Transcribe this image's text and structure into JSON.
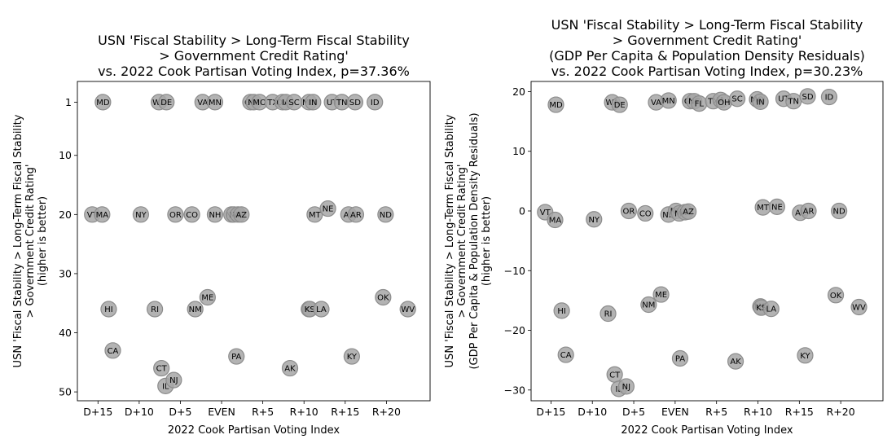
{
  "chart_data": [
    {
      "type": "scatter",
      "title_lines": [
        "USN 'Fiscal Stability > Long-Term Fiscal Stability",
        "> Government Credit Rating'",
        "vs. 2022 Cook Partisan Voting Index, p=37.36%"
      ],
      "xlabel": "2022 Cook Partisan Voting Index",
      "ylabel_lines": [
        "USN 'Fiscal Stability > Long-Term Fiscal Stability",
        "> Government Credit Rating'",
        "(higher is better)"
      ],
      "y_inverted": true,
      "xlim": [
        -17.5,
        25.3
      ],
      "ylim": [
        51.5,
        -2.5
      ],
      "xticks": [
        {
          "v": -15,
          "label": "D+15"
        },
        {
          "v": -10,
          "label": "D+10"
        },
        {
          "v": -5,
          "label": "D+5"
        },
        {
          "v": 0,
          "label": "EVEN"
        },
        {
          "v": 5,
          "label": "R+5"
        },
        {
          "v": 10,
          "label": "R+10"
        },
        {
          "v": 15,
          "label": "R+15"
        },
        {
          "v": 20,
          "label": "R+20"
        }
      ],
      "yticks": [
        {
          "v": 1,
          "label": "1"
        },
        {
          "v": 10,
          "label": "10"
        },
        {
          "v": 20,
          "label": "20"
        },
        {
          "v": 30,
          "label": "30"
        },
        {
          "v": 40,
          "label": "40"
        },
        {
          "v": 50,
          "label": "50"
        }
      ],
      "points": [
        {
          "label": "MD",
          "x": -14.4,
          "y": 1
        },
        {
          "label": "WA",
          "x": -7.6,
          "y": 1
        },
        {
          "label": "DE",
          "x": -6.7,
          "y": 1
        },
        {
          "label": "VA",
          "x": -2.3,
          "y": 1
        },
        {
          "label": "MN",
          "x": -0.8,
          "y": 1
        },
        {
          "label": "GA",
          "x": 3.5,
          "y": 1
        },
        {
          "label": "NC",
          "x": 3.9,
          "y": 1
        },
        {
          "label": "MO",
          "x": 4.6,
          "y": 1
        },
        {
          "label": "TX",
          "x": 6.2,
          "y": 1
        },
        {
          "label": "OH",
          "x": 7.4,
          "y": 1
        },
        {
          "label": "IA",
          "x": 7.8,
          "y": 1
        },
        {
          "label": "SC",
          "x": 8.8,
          "y": 1
        },
        {
          "label": "MO",
          "x": 10.6,
          "y": 1
        },
        {
          "label": "IN",
          "x": 11.1,
          "y": 1
        },
        {
          "label": "UT",
          "x": 13.4,
          "y": 1
        },
        {
          "label": "TN",
          "x": 14.6,
          "y": 1
        },
        {
          "label": "SD",
          "x": 16.2,
          "y": 1
        },
        {
          "label": "ID",
          "x": 18.6,
          "y": 1
        },
        {
          "label": "VT",
          "x": -15.7,
          "y": 20
        },
        {
          "label": "MA",
          "x": -14.5,
          "y": 20
        },
        {
          "label": "NY",
          "x": -9.8,
          "y": 20
        },
        {
          "label": "OR",
          "x": -5.6,
          "y": 20
        },
        {
          "label": "CO",
          "x": -3.6,
          "y": 20
        },
        {
          "label": "NH",
          "x": -0.8,
          "y": 20
        },
        {
          "label": "NV",
          "x": 1.2,
          "y": 20
        },
        {
          "label": "MI",
          "x": 1.5,
          "y": 20
        },
        {
          "label": "WI",
          "x": 2.0,
          "y": 20
        },
        {
          "label": "AZ",
          "x": 2.4,
          "y": 20
        },
        {
          "label": "MT",
          "x": 11.3,
          "y": 20
        },
        {
          "label": "NE",
          "x": 12.9,
          "y": 19
        },
        {
          "label": "AL",
          "x": 15.4,
          "y": 20
        },
        {
          "label": "AR",
          "x": 16.3,
          "y": 20
        },
        {
          "label": "ND",
          "x": 19.9,
          "y": 20
        },
        {
          "label": "HI",
          "x": -13.7,
          "y": 36
        },
        {
          "label": "RI",
          "x": -8.1,
          "y": 36
        },
        {
          "label": "NM",
          "x": -3.2,
          "y": 36
        },
        {
          "label": "ME",
          "x": -1.7,
          "y": 34
        },
        {
          "label": "MS",
          "x": 10.6,
          "y": 36
        },
        {
          "label": "KS",
          "x": 10.7,
          "y": 36
        },
        {
          "label": "LA",
          "x": 12.1,
          "y": 36
        },
        {
          "label": "OK",
          "x": 19.6,
          "y": 34
        },
        {
          "label": "WV",
          "x": 22.6,
          "y": 36
        },
        {
          "label": "CA",
          "x": -13.2,
          "y": 43
        },
        {
          "label": "CT",
          "x": -7.3,
          "y": 46
        },
        {
          "label": "IL",
          "x": -6.8,
          "y": 49
        },
        {
          "label": "NJ",
          "x": -5.8,
          "y": 48
        },
        {
          "label": "PA",
          "x": 1.8,
          "y": 44
        },
        {
          "label": "AK",
          "x": 8.3,
          "y": 46
        },
        {
          "label": "KY",
          "x": 15.8,
          "y": 44
        }
      ]
    },
    {
      "type": "scatter",
      "title_lines": [
        "USN 'Fiscal Stability > Long-Term Fiscal Stability",
        "> Government Credit Rating'",
        "(GDP Per Capita & Population Density Residuals)",
        "vs. 2022 Cook Partisan Voting Index, p=30.23%"
      ],
      "xlabel": "2022 Cook Partisan Voting Index",
      "ylabel_lines": [
        "USN 'Fiscal Stability > Long-Term Fiscal Stability",
        "> Government Credit Rating'",
        "(GDP Per Capita & Population Density Residuals)",
        "(higher is better)"
      ],
      "y_inverted": false,
      "xlim": [
        -17.4,
        25.1
      ],
      "ylim": [
        -31.8,
        21.7
      ],
      "xticks": [
        {
          "v": -15,
          "label": "D+15"
        },
        {
          "v": -10,
          "label": "D+10"
        },
        {
          "v": -5,
          "label": "D+5"
        },
        {
          "v": 0,
          "label": "EVEN"
        },
        {
          "v": 5,
          "label": "R+5"
        },
        {
          "v": 10,
          "label": "R+10"
        },
        {
          "v": 15,
          "label": "R+15"
        },
        {
          "v": 20,
          "label": "R+20"
        }
      ],
      "yticks": [
        {
          "v": 20,
          "label": "20"
        },
        {
          "v": 10,
          "label": "10"
        },
        {
          "v": 0,
          "label": "0"
        },
        {
          "v": -10,
          "label": "−10"
        },
        {
          "v": -20,
          "label": "−20"
        },
        {
          "v": -30,
          "label": "−30"
        }
      ],
      "points": [
        {
          "label": "MD",
          "x": -14.4,
          "y": 17.8
        },
        {
          "label": "WA",
          "x": -7.6,
          "y": 18.2
        },
        {
          "label": "DE",
          "x": -6.7,
          "y": 17.8
        },
        {
          "label": "VA",
          "x": -2.3,
          "y": 18.2
        },
        {
          "label": "MN",
          "x": -0.8,
          "y": 18.5
        },
        {
          "label": "GA",
          "x": 1.8,
          "y": 18.4
        },
        {
          "label": "NC",
          "x": 2.3,
          "y": 18.4
        },
        {
          "label": "FL",
          "x": 2.9,
          "y": 18.0
        },
        {
          "label": "TX",
          "x": 4.6,
          "y": 18.4
        },
        {
          "label": "IA",
          "x": 5.5,
          "y": 18.6
        },
        {
          "label": "OH",
          "x": 5.9,
          "y": 18.2
        },
        {
          "label": "SC",
          "x": 7.5,
          "y": 18.8
        },
        {
          "label": "MO",
          "x": 9.9,
          "y": 18.7
        },
        {
          "label": "IN",
          "x": 10.3,
          "y": 18.3
        },
        {
          "label": "UT",
          "x": 13.1,
          "y": 18.8
        },
        {
          "label": "TN",
          "x": 14.3,
          "y": 18.4
        },
        {
          "label": "SD",
          "x": 16.0,
          "y": 19.2
        },
        {
          "label": "ID",
          "x": 18.6,
          "y": 19.1
        },
        {
          "label": "VT",
          "x": -15.7,
          "y": -0.2
        },
        {
          "label": "MA",
          "x": -14.5,
          "y": -1.5
        },
        {
          "label": "NY",
          "x": -9.8,
          "y": -1.4
        },
        {
          "label": "OR",
          "x": -5.6,
          "y": 0.0
        },
        {
          "label": "CO",
          "x": -3.6,
          "y": -0.4
        },
        {
          "label": "NH",
          "x": -0.8,
          "y": -0.6
        },
        {
          "label": "NV",
          "x": 0.1,
          "y": 0.0
        },
        {
          "label": "MI",
          "x": 0.5,
          "y": -0.4
        },
        {
          "label": "WI",
          "x": 1.2,
          "y": -0.2
        },
        {
          "label": "AZ",
          "x": 1.6,
          "y": -0.1
        },
        {
          "label": "MT",
          "x": 10.6,
          "y": 0.6
        },
        {
          "label": "NE",
          "x": 12.3,
          "y": 0.7
        },
        {
          "label": "AL",
          "x": 15.1,
          "y": -0.3
        },
        {
          "label": "AR",
          "x": 16.1,
          "y": 0.0
        },
        {
          "label": "ND",
          "x": 19.8,
          "y": 0.0
        },
        {
          "label": "HI",
          "x": -13.7,
          "y": -16.7
        },
        {
          "label": "RI",
          "x": -8.1,
          "y": -17.2
        },
        {
          "label": "NM",
          "x": -3.2,
          "y": -15.7
        },
        {
          "label": "ME",
          "x": -1.7,
          "y": -14.0
        },
        {
          "label": "MS",
          "x": 10.3,
          "y": -16.0
        },
        {
          "label": "KS",
          "x": 10.4,
          "y": -16.2
        },
        {
          "label": "LA",
          "x": 11.6,
          "y": -16.4
        },
        {
          "label": "OK",
          "x": 19.4,
          "y": -14.1
        },
        {
          "label": "WV",
          "x": 22.2,
          "y": -16.1
        },
        {
          "label": "CA",
          "x": -13.2,
          "y": -24.1
        },
        {
          "label": "CT",
          "x": -7.3,
          "y": -27.4
        },
        {
          "label": "IL",
          "x": -6.8,
          "y": -29.8
        },
        {
          "label": "NJ",
          "x": -5.9,
          "y": -29.4
        },
        {
          "label": "PA",
          "x": 0.6,
          "y": -24.7
        },
        {
          "label": "AK",
          "x": 7.3,
          "y": -25.2
        },
        {
          "label": "KY",
          "x": 15.7,
          "y": -24.2
        }
      ]
    }
  ]
}
